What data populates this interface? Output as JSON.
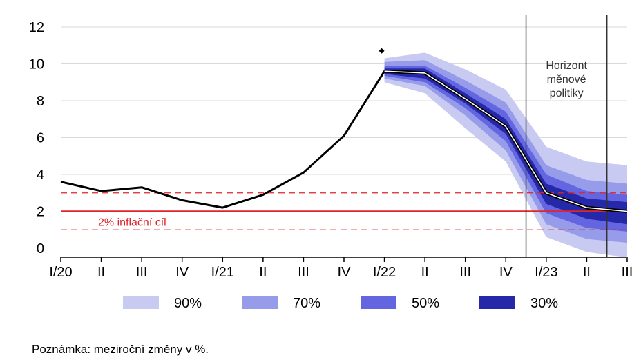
{
  "chart_data": {
    "type": "line",
    "x": [
      "I/20",
      "II",
      "III",
      "IV",
      "I/21",
      "II",
      "III",
      "IV",
      "I/22",
      "II",
      "III",
      "IV",
      "I/23",
      "II",
      "III"
    ],
    "ylim": [
      0,
      12
    ],
    "yticks": [
      0,
      2,
      4,
      6,
      8,
      10,
      12
    ],
    "grid": true,
    "series": [
      {
        "values": [
          3.6,
          3.1,
          3.3,
          2.6,
          2.2,
          2.9,
          4.1,
          6.1,
          9.6,
          9.5,
          8.1,
          6.6,
          3.0,
          2.2,
          2.0
        ]
      }
    ],
    "fan_bands": {
      "start_index": 8,
      "levels": [
        {
          "name": "90%",
          "color": "#c8caf2",
          "lower": [
            9.0,
            8.4,
            6.5,
            4.7,
            0.6,
            -0.2,
            -0.5
          ],
          "upper": [
            10.3,
            10.6,
            9.7,
            8.6,
            5.5,
            4.7,
            4.5
          ]
        },
        {
          "name": "70%",
          "color": "#979cea",
          "lower": [
            9.2,
            8.8,
            7.2,
            5.3,
            1.3,
            0.5,
            0.3
          ],
          "upper": [
            10.1,
            10.2,
            9.1,
            7.9,
            4.5,
            3.7,
            3.5
          ]
        },
        {
          "name": "50%",
          "color": "#6366e0",
          "lower": [
            9.35,
            9.0,
            7.6,
            5.8,
            1.9,
            1.1,
            0.9
          ],
          "upper": [
            9.9,
            9.9,
            8.7,
            7.4,
            4.0,
            3.1,
            2.9
          ]
        },
        {
          "name": "30%",
          "color": "#2528a8",
          "lower": [
            9.45,
            9.2,
            7.85,
            6.2,
            2.4,
            1.6,
            1.3
          ],
          "upper": [
            9.75,
            9.75,
            8.4,
            7.0,
            3.5,
            2.7,
            2.5
          ]
        }
      ]
    },
    "outlier_point": {
      "x_index": 8,
      "y": 10.7
    },
    "inflation_target": {
      "value": 2,
      "label": "2% inflační cíl",
      "color": "#e0242a"
    },
    "tolerance_band": {
      "lower": 1,
      "upper": 3
    },
    "policy_horizon": {
      "label_lines": [
        "Horizont",
        "měnové",
        "politiky"
      ],
      "start_x": 11.5,
      "end_x": 13.5
    },
    "legend": [
      "90%",
      "70%",
      "50%",
      "30%"
    ],
    "legend_position": "bottom"
  },
  "note": "Poznámka: meziroční změny v %."
}
